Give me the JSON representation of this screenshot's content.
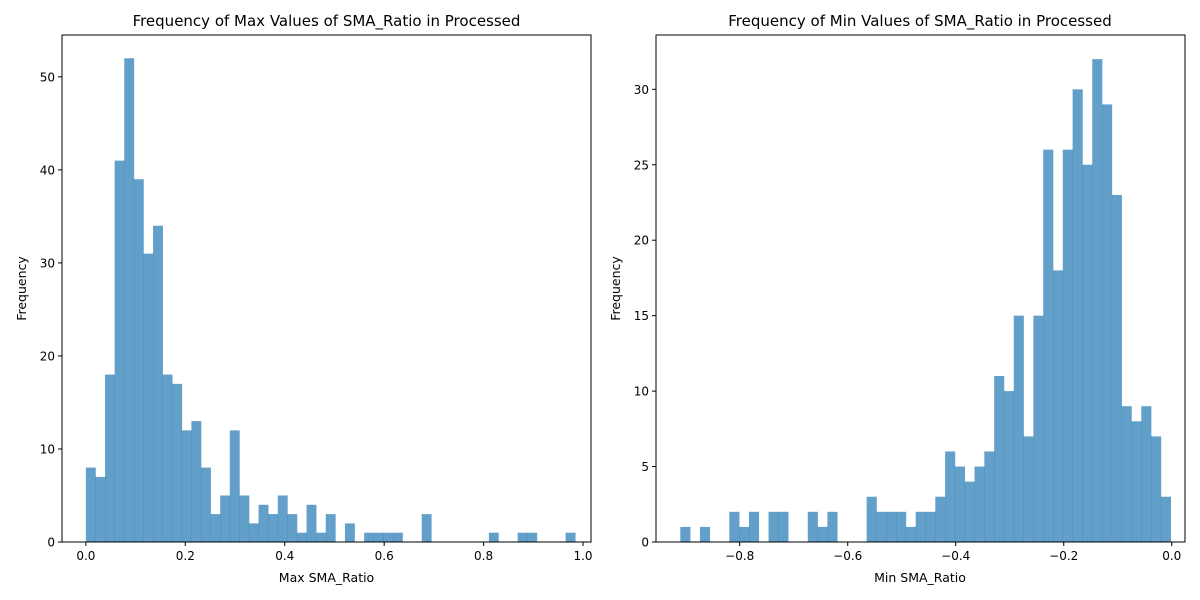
{
  "chart_data": [
    {
      "type": "bar",
      "histogram": true,
      "title": "Frequency of Max Values of SMA_Ratio in Processed",
      "xlabel": "Max SMA_Ratio",
      "ylabel": "Frequency",
      "xlim": [
        -0.048,
        1.016
      ],
      "ylim": [
        0,
        54.5
      ],
      "bin_start": 0.0,
      "bin_width": 0.0193,
      "counts": [
        8,
        7,
        18,
        41,
        52,
        39,
        31,
        34,
        18,
        17,
        12,
        13,
        8,
        3,
        5,
        12,
        5,
        2,
        4,
        3,
        5,
        3,
        1,
        4,
        1,
        3,
        0,
        2,
        0,
        1,
        1,
        1,
        1,
        0,
        0,
        3,
        0,
        0,
        0,
        0,
        0,
        0,
        1,
        0,
        0,
        1,
        1,
        0,
        0,
        0,
        1
      ],
      "xticks": [
        0.0,
        0.2,
        0.4,
        0.6,
        0.8,
        1.0
      ],
      "xtick_labels": [
        "0.0",
        "0.2",
        "0.4",
        "0.6",
        "0.8",
        "1.0"
      ],
      "yticks": [
        0,
        10,
        20,
        30,
        40,
        50
      ],
      "ytick_labels": [
        "0",
        "10",
        "20",
        "30",
        "40",
        "50"
      ],
      "bar_color": "#1f77b4",
      "bar_alpha": 0.7,
      "grid": false
    },
    {
      "type": "bar",
      "histogram": true,
      "title": "Frequency of Min Values of SMA_Ratio in Processed",
      "xlabel": "Min SMA_Ratio",
      "ylabel": "Frequency",
      "xlim": [
        -0.955,
        0.0245
      ],
      "ylim": [
        0,
        33.6
      ],
      "bin_start": -0.91,
      "bin_width": 0.01816,
      "counts": [
        1,
        0,
        1,
        0,
        0,
        2,
        1,
        2,
        0,
        2,
        2,
        0,
        0,
        2,
        1,
        2,
        0,
        0,
        0,
        3,
        2,
        2,
        2,
        1,
        2,
        2,
        3,
        6,
        5,
        4,
        5,
        6,
        11,
        10,
        15,
        7,
        15,
        26,
        18,
        26,
        30,
        25,
        32,
        29,
        23,
        9,
        8,
        9,
        7,
        3
      ],
      "xticks": [
        -0.8,
        -0.6,
        -0.4,
        -0.2,
        0.0
      ],
      "xtick_labels": [
        "−0.8",
        "−0.6",
        "−0.4",
        "−0.2",
        "0.0"
      ],
      "yticks": [
        0,
        5,
        10,
        15,
        20,
        25,
        30
      ],
      "ytick_labels": [
        "0",
        "5",
        "10",
        "15",
        "20",
        "25",
        "30"
      ],
      "bar_color": "#1f77b4",
      "bar_alpha": 0.7,
      "grid": false
    }
  ]
}
